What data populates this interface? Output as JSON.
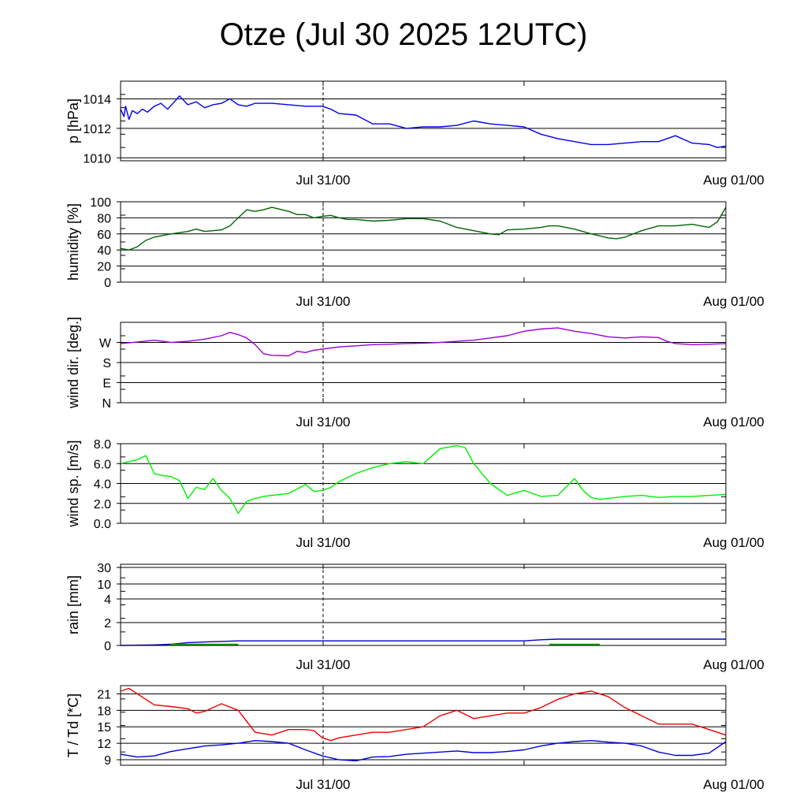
{
  "title": "Otze (Jul 30 2025 12UTC)",
  "chart_data": [
    {
      "type": "line",
      "ylabel": "p [hPa]",
      "x_ticks": [
        "Jul 31/00",
        "Aug 01/00"
      ],
      "x_range": [
        0,
        36
      ],
      "ylim": [
        1009.8,
        1015.2
      ],
      "y_ticks": [
        {
          "label": "1010",
          "value": 1010
        },
        {
          "label": "1012",
          "value": 1012
        },
        {
          "label": "1014",
          "value": 1014
        }
      ],
      "series": [
        {
          "color": "#0000ee",
          "x": [
            0,
            0.2,
            0.3,
            0.5,
            0.7,
            1,
            1.3,
            1.6,
            2,
            2.4,
            2.8,
            3.2,
            3.5,
            4,
            4.5,
            5,
            5.5,
            6,
            6.5,
            7,
            7.5,
            8,
            9,
            10,
            11,
            12,
            12.5,
            13,
            14,
            15,
            16,
            17,
            18,
            19,
            20,
            21,
            22,
            23,
            24,
            25,
            26,
            27,
            28,
            29,
            30,
            31,
            32,
            33,
            34,
            35,
            35.5,
            36
          ],
          "y": [
            1013.3,
            1012.8,
            1013.5,
            1012.6,
            1013.2,
            1013.0,
            1013.3,
            1013.1,
            1013.5,
            1013.7,
            1013.3,
            1013.8,
            1014.2,
            1013.6,
            1013.8,
            1013.4,
            1013.6,
            1013.7,
            1014.0,
            1013.6,
            1013.5,
            1013.7,
            1013.7,
            1013.6,
            1013.5,
            1013.5,
            1013.3,
            1013.0,
            1012.9,
            1012.3,
            1012.3,
            1012.0,
            1012.1,
            1012.1,
            1012.2,
            1012.5,
            1012.3,
            1012.2,
            1012.1,
            1011.6,
            1011.3,
            1011.1,
            1010.9,
            1010.9,
            1011.0,
            1011.1,
            1011.1,
            1011.5,
            1011.0,
            1010.9,
            1010.7,
            1010.8
          ]
        }
      ]
    },
    {
      "type": "line",
      "ylabel": "humidity [%]",
      "x_ticks": [
        "Jul 31/00",
        "Aug 01/00"
      ],
      "x_range": [
        0,
        36
      ],
      "ylim": [
        0,
        100
      ],
      "y_ticks": [
        {
          "label": "0",
          "value": 0
        },
        {
          "label": "20",
          "value": 20
        },
        {
          "label": "40",
          "value": 40
        },
        {
          "label": "60",
          "value": 60
        },
        {
          "label": "80",
          "value": 80
        },
        {
          "label": "100",
          "value": 100
        }
      ],
      "series": [
        {
          "color": "#006400",
          "x": [
            0,
            0.5,
            1,
            1.5,
            2,
            3,
            4,
            4.5,
            5,
            6,
            6.5,
            7,
            7.5,
            8,
            8.5,
            9,
            10,
            10.5,
            11,
            11.5,
            12,
            12.5,
            13,
            13.5,
            14,
            15,
            16,
            17,
            18,
            19,
            20,
            21,
            22,
            22.5,
            23,
            24,
            25,
            25.5,
            26,
            27,
            28,
            29,
            29.5,
            30,
            31,
            32,
            33,
            34,
            35,
            35.5,
            36
          ],
          "y": [
            42,
            40,
            44,
            52,
            56,
            60,
            63,
            66,
            63,
            65,
            70,
            80,
            90,
            88,
            90,
            93,
            88,
            84,
            84,
            80,
            82,
            83,
            80,
            78,
            78,
            76,
            77,
            79,
            79,
            76,
            68,
            64,
            60,
            59,
            65,
            66,
            68,
            70,
            70,
            66,
            60,
            55,
            54,
            56,
            64,
            70,
            70,
            72,
            68,
            75,
            93
          ]
        }
      ]
    },
    {
      "type": "line",
      "ylabel": "wind dir. [deg.]",
      "x_ticks": [
        "Jul 31/00",
        "Aug 01/00"
      ],
      "x_range": [
        0,
        36
      ],
      "ylim": [
        0,
        360
      ],
      "y_ticks": [
        {
          "label": "N",
          "value": 0
        },
        {
          "label": "E",
          "value": 90
        },
        {
          "label": "S",
          "value": 180
        },
        {
          "label": "W",
          "value": 270
        }
      ],
      "series": [
        {
          "color": "#9900dd",
          "x": [
            0,
            1,
            2,
            3,
            4,
            5,
            6,
            6.5,
            7,
            7.5,
            8,
            8.5,
            9,
            10,
            10.5,
            11,
            11.5,
            12,
            13,
            14,
            15,
            16,
            17,
            18,
            19,
            20,
            21,
            22,
            23,
            24,
            25,
            26,
            27,
            28,
            29,
            30,
            31,
            32,
            32.5,
            33,
            34,
            35,
            36
          ],
          "y": [
            265,
            272,
            280,
            270,
            275,
            285,
            300,
            315,
            305,
            290,
            260,
            220,
            212,
            210,
            230,
            225,
            235,
            240,
            250,
            255,
            260,
            262,
            265,
            267,
            270,
            275,
            280,
            290,
            300,
            320,
            330,
            335,
            320,
            310,
            295,
            290,
            295,
            292,
            275,
            265,
            260,
            262,
            265
          ]
        }
      ]
    },
    {
      "type": "line",
      "ylabel": "wind sp. [m/s]",
      "x_ticks": [
        "Jul 31/00",
        "Aug 01/00"
      ],
      "x_range": [
        0,
        36
      ],
      "ylim": [
        0,
        8
      ],
      "y_ticks": [
        {
          "label": "0.0",
          "value": 0
        },
        {
          "label": "2.0",
          "value": 2
        },
        {
          "label": "4.0",
          "value": 4
        },
        {
          "label": "6.0",
          "value": 6
        },
        {
          "label": "8.0",
          "value": 8
        }
      ],
      "series": [
        {
          "color": "#00ee00",
          "x": [
            0,
            1,
            1.5,
            2,
            2.5,
            3,
            3.5,
            4,
            4.5,
            5,
            5.5,
            6,
            6.5,
            7,
            7.5,
            8,
            8.5,
            9,
            10,
            11,
            11.5,
            12,
            12.5,
            13,
            14,
            15,
            16,
            17,
            18,
            19,
            20,
            20.5,
            21,
            21.5,
            22,
            23,
            24,
            25,
            26,
            27,
            27.5,
            28,
            28.5,
            29,
            30,
            31,
            32,
            33,
            34,
            35,
            36
          ],
          "y": [
            6.0,
            6.4,
            6.8,
            5.0,
            4.8,
            4.7,
            4.3,
            2.5,
            3.6,
            3.4,
            4.5,
            3.3,
            2.5,
            1.0,
            2.2,
            2.5,
            2.7,
            2.8,
            3.0,
            3.9,
            3.2,
            3.3,
            3.6,
            4.2,
            5.0,
            5.6,
            6.0,
            6.2,
            6.0,
            7.5,
            7.8,
            7.6,
            6.0,
            5.0,
            4.0,
            2.8,
            3.3,
            2.7,
            2.8,
            4.5,
            3.3,
            2.6,
            2.4,
            2.5,
            2.7,
            2.8,
            2.6,
            2.7,
            2.7,
            2.8,
            2.9
          ]
        }
      ]
    },
    {
      "type": "line",
      "ylabel": "rain [mm]",
      "x_ticks": [
        "Jul 31/00",
        "Aug 01/00"
      ],
      "x_range": [
        0,
        36
      ],
      "scale": "nonlinear",
      "y_ticks": [
        {
          "label": "0",
          "value": 0
        },
        {
          "label": "2",
          "value": 2
        },
        {
          "label": "4",
          "value": 4
        },
        {
          "label": "10",
          "value": 10
        },
        {
          "label": "30",
          "value": 30
        }
      ],
      "series": [
        {
          "color": "#0000cc",
          "x": [
            0,
            2,
            3,
            4,
            5,
            6,
            7,
            12,
            24,
            25,
            26,
            36
          ],
          "y": [
            0,
            0.05,
            0.1,
            0.25,
            0.3,
            0.35,
            0.4,
            0.4,
            0.4,
            0.5,
            0.55,
            0.55
          ]
        },
        {
          "color": "#00aa00",
          "x": [
            3,
            7,
            25.5,
            28.5
          ],
          "y": [
            0.05,
            0.05,
            0.05,
            0.05
          ],
          "segments": [
            [
              0,
              1
            ],
            [
              2,
              3
            ]
          ]
        }
      ]
    },
    {
      "type": "line",
      "ylabel": "T / Td [*C]",
      "x_ticks": [
        "Jul 31/00",
        "Aug 01/00"
      ],
      "x_range": [
        0,
        36
      ],
      "ylim": [
        8,
        22.5
      ],
      "y_ticks": [
        {
          "label": "9",
          "value": 9
        },
        {
          "label": "12",
          "value": 12
        },
        {
          "label": "15",
          "value": 15
        },
        {
          "label": "18",
          "value": 18
        },
        {
          "label": "21",
          "value": 21
        }
      ],
      "series": [
        {
          "color": "#ee0000",
          "x": [
            0,
            0.5,
            1,
            1.5,
            2,
            3,
            4,
            4.5,
            5,
            5.5,
            6,
            7,
            7.5,
            8,
            9,
            10,
            11,
            11.5,
            12,
            12.5,
            13,
            14,
            15,
            16,
            17,
            18,
            19,
            20,
            21,
            22,
            23,
            24,
            25,
            26,
            27,
            28,
            29,
            30,
            31,
            32,
            33,
            34,
            35,
            36
          ],
          "y": [
            21.5,
            22,
            21,
            20,
            19,
            18.7,
            18.3,
            17.5,
            17.8,
            18.5,
            19.2,
            18,
            16,
            14,
            13.5,
            14.5,
            14.5,
            14.3,
            13,
            12.5,
            13,
            13.5,
            14,
            14,
            14.5,
            15,
            17,
            18,
            16.5,
            17,
            17.5,
            17.5,
            18.5,
            20,
            21,
            21.5,
            20.5,
            18.5,
            17,
            15.5,
            15.5,
            15.5,
            14.5,
            13.5
          ]
        },
        {
          "color": "#0000dd",
          "x": [
            0,
            1,
            2,
            3,
            4,
            5,
            6,
            7,
            8,
            9,
            10,
            11,
            12,
            13,
            14,
            15,
            16,
            17,
            18,
            19,
            20,
            21,
            22,
            23,
            24,
            25,
            26,
            27,
            28,
            29,
            30,
            31,
            32,
            33,
            34,
            35,
            36
          ],
          "y": [
            10,
            9.5,
            9.7,
            10.5,
            11,
            11.5,
            11.7,
            12,
            12.5,
            12.3,
            12,
            10.8,
            9.7,
            9.0,
            8.8,
            9.5,
            9.6,
            10,
            10.2,
            10.4,
            10.6,
            10.3,
            10.3,
            10.5,
            10.8,
            11.5,
            12,
            12.3,
            12.5,
            12.2,
            12.0,
            11.5,
            10.4,
            9.8,
            9.8,
            10.2,
            12.3
          ]
        }
      ]
    }
  ]
}
